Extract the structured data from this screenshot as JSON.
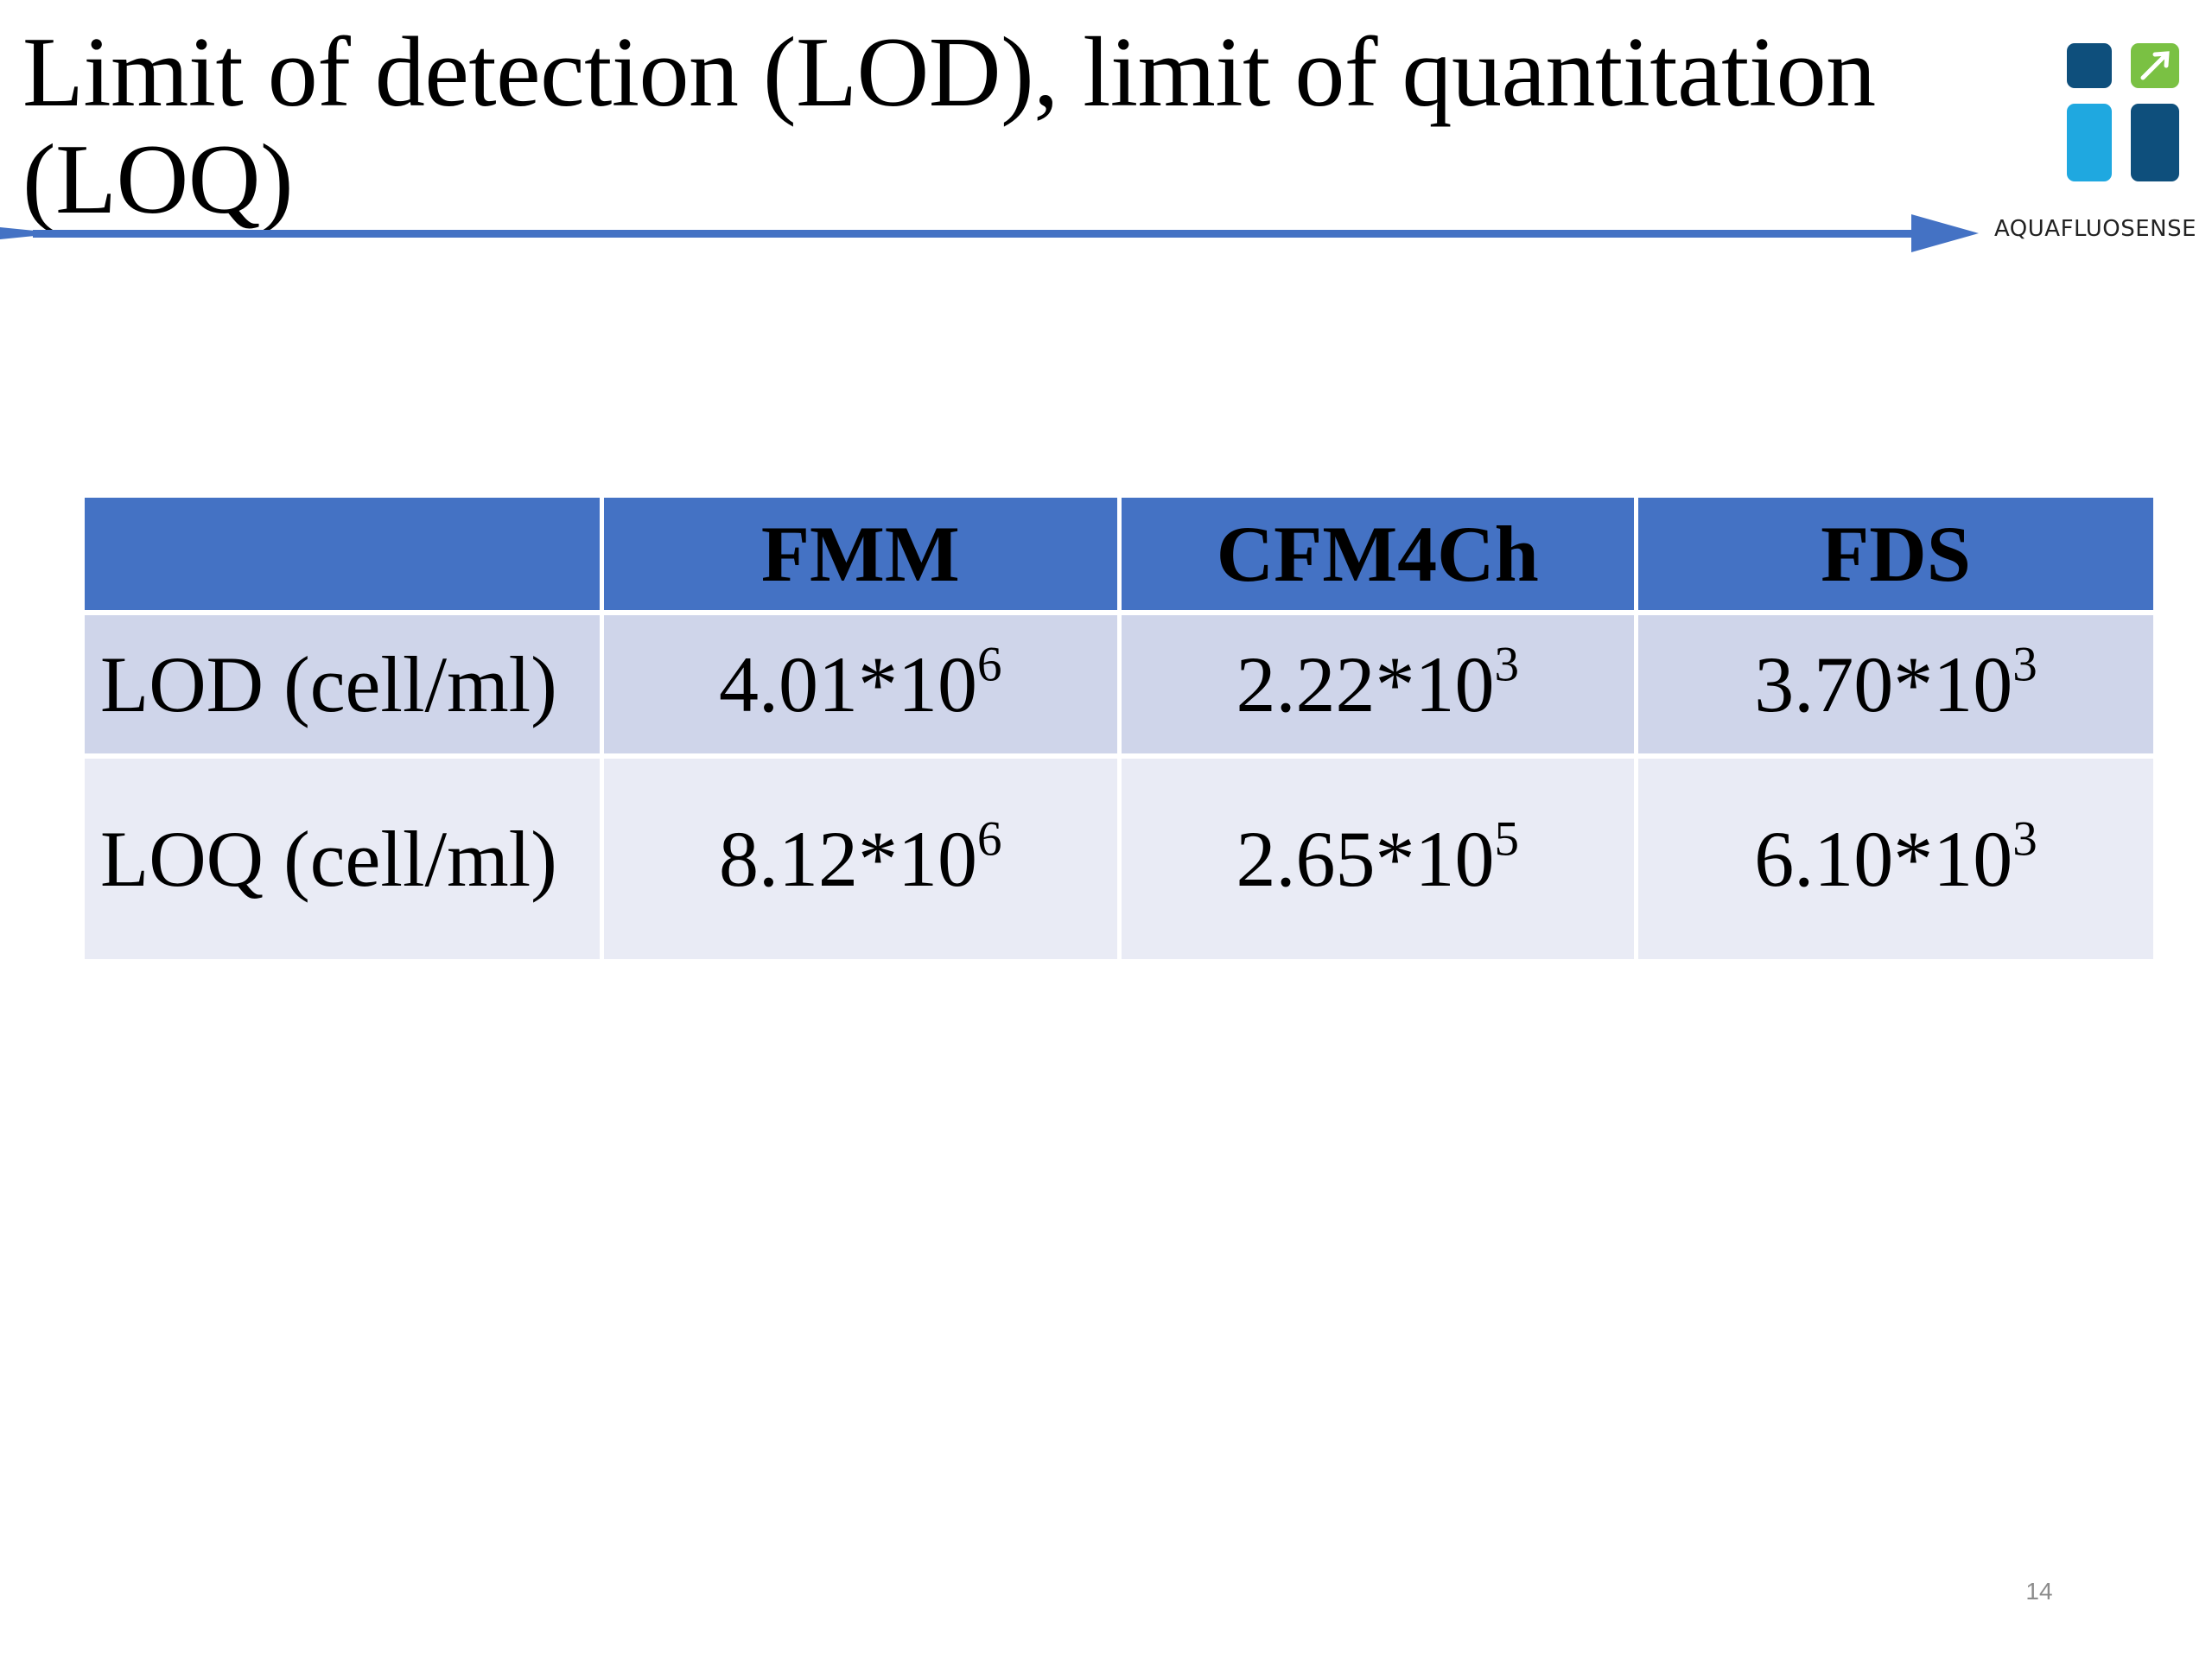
{
  "slide": {
    "title": "Limit of detection (LOD), limit of quantitation (LOQ)",
    "page_number": "14"
  },
  "logo": {
    "icon": "aquafluosense-logo-icon",
    "brand_name": "AQUAFLUOSENSE",
    "colors": {
      "dark_blue": "#0e4f7c",
      "light_blue": "#1fa8e0",
      "green": "#7ac143"
    }
  },
  "colors": {
    "accent": "#4472c4",
    "row_odd": "#cfd5ea",
    "row_even": "#e9ebf5"
  },
  "table": {
    "columns": [
      "",
      "FMM",
      "CFM4Ch",
      "FDS"
    ],
    "rows": [
      {
        "label": "LOD (cell/ml)",
        "cells": [
          {
            "base": "4.01*10",
            "exp": "6"
          },
          {
            "base": "2.22*10",
            "exp": "3"
          },
          {
            "base": "3.70*10",
            "exp": "3"
          }
        ]
      },
      {
        "label": "LOQ (cell/ml)",
        "cells": [
          {
            "base": "8.12*10",
            "exp": "6"
          },
          {
            "base": "2.65*10",
            "exp": "5"
          },
          {
            "base": "6.10*10",
            "exp": "3"
          }
        ]
      }
    ]
  }
}
